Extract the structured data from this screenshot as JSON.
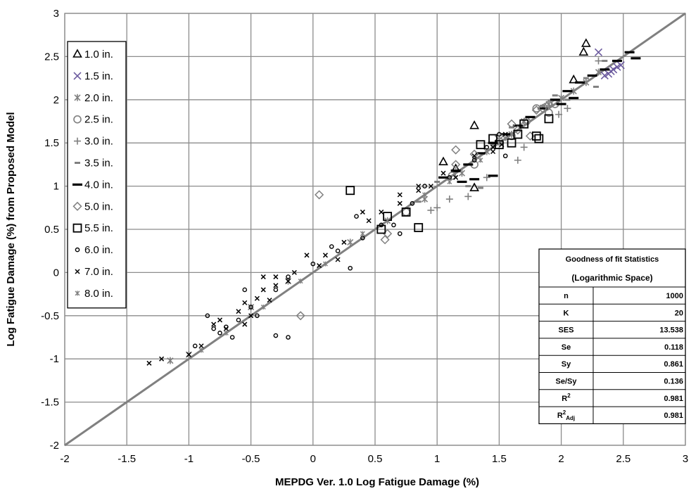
{
  "chart_data": {
    "type": "scatter",
    "xlabel": "MEPDG Ver. 1.0 Log Fatigue Damage (%)",
    "ylabel": "Log Fatigue Damage (%) from Proposed Model",
    "xlim": [
      -2,
      3
    ],
    "ylim": [
      -2,
      3
    ],
    "x_ticks": [
      "-2",
      "-1.5",
      "-1",
      "-0.5",
      "0",
      "0.5",
      "1",
      "1.5",
      "2",
      "2.5",
      "3"
    ],
    "y_ticks": [
      "-2",
      "-1.5",
      "-1",
      "-0.5",
      "0",
      "0.5",
      "1",
      "1.5",
      "2",
      "2.5",
      "3"
    ],
    "grid": true,
    "legend_position": "top-left",
    "equality_line": [
      [
        -2,
        -2
      ],
      [
        3,
        3
      ]
    ],
    "series": [
      {
        "name": "1.0 in.",
        "marker": "triangle",
        "color": "#000000",
        "points": [
          [
            2.2,
            2.65
          ],
          [
            2.18,
            2.55
          ],
          [
            2.1,
            2.23
          ],
          [
            1.3,
            1.7
          ],
          [
            1.05,
            1.28
          ],
          [
            1.15,
            1.2
          ],
          [
            1.3,
            0.98
          ]
        ]
      },
      {
        "name": "1.5 in.",
        "marker": "x",
        "color": "#6b5a9e",
        "points": [
          [
            2.3,
            2.55
          ],
          [
            2.42,
            2.35
          ],
          [
            2.45,
            2.38
          ],
          [
            2.38,
            2.3
          ],
          [
            2.35,
            2.28
          ],
          [
            2.48,
            2.4
          ],
          [
            2.4,
            2.33
          ]
        ]
      },
      {
        "name": "2.0 in.",
        "marker": "asterisk",
        "color": "#808080",
        "points": [
          [
            1.9,
            1.95
          ],
          [
            2.0,
            2.02
          ],
          [
            2.1,
            2.1
          ],
          [
            1.7,
            1.75
          ],
          [
            1.6,
            1.6
          ],
          [
            1.4,
            1.4
          ],
          [
            1.2,
            1.15
          ],
          [
            0.9,
            0.85
          ],
          [
            0.6,
            0.6
          ],
          [
            0.3,
            0.35
          ],
          [
            -0.2,
            -0.1
          ],
          [
            -0.5,
            -0.4
          ],
          [
            -1.15,
            -1.02
          ],
          [
            -1.0,
            -0.95
          ],
          [
            2.2,
            2.2
          ],
          [
            2.3,
            2.32
          ]
        ]
      },
      {
        "name": "2.5 in.",
        "marker": "circle",
        "color": "#808080",
        "points": [
          [
            1.72,
            1.75
          ],
          [
            1.8,
            1.9
          ],
          [
            1.88,
            1.92
          ],
          [
            1.9,
            1.85
          ],
          [
            1.95,
            1.95
          ],
          [
            1.6,
            1.58
          ],
          [
            1.5,
            1.52
          ],
          [
            1.3,
            1.25
          ],
          [
            1.12,
            1.12
          ],
          [
            0.75,
            0.7
          ]
        ]
      },
      {
        "name": "3.0 in.",
        "marker": "plus",
        "color": "#808080",
        "points": [
          [
            2.3,
            2.45
          ],
          [
            1.98,
            1.83
          ],
          [
            2.05,
            1.9
          ],
          [
            1.7,
            1.45
          ],
          [
            1.65,
            1.3
          ],
          [
            1.25,
            0.88
          ],
          [
            1.1,
            0.85
          ],
          [
            1.0,
            0.75
          ],
          [
            0.95,
            0.72
          ],
          [
            1.4,
            1.1
          ]
        ]
      },
      {
        "name": "3.5 in.",
        "marker": "dash",
        "color": "#808080",
        "points": [
          [
            2.35,
            2.45
          ],
          [
            2.2,
            2.25
          ],
          [
            1.95,
            2.05
          ],
          [
            1.85,
            1.93
          ],
          [
            1.6,
            1.68
          ],
          [
            1.45,
            1.48
          ],
          [
            1.25,
            1.0
          ],
          [
            1.35,
            0.98
          ],
          [
            0.85,
            0.82
          ],
          [
            1.0,
            1.05
          ],
          [
            2.28,
            2.15
          ],
          [
            2.05,
            2.0
          ]
        ]
      },
      {
        "name": "4.0 in.",
        "marker": "bar",
        "color": "#000000",
        "points": [
          [
            2.55,
            2.55
          ],
          [
            2.6,
            2.48
          ],
          [
            2.45,
            2.45
          ],
          [
            2.35,
            2.35
          ],
          [
            2.25,
            2.28
          ],
          [
            2.15,
            2.2
          ],
          [
            2.05,
            2.1
          ],
          [
            1.95,
            2.0
          ],
          [
            1.85,
            1.9
          ],
          [
            1.75,
            1.8
          ],
          [
            1.65,
            1.7
          ],
          [
            1.55,
            1.6
          ],
          [
            1.45,
            1.5
          ],
          [
            1.35,
            1.38
          ],
          [
            1.25,
            1.25
          ],
          [
            1.3,
            1.08
          ],
          [
            1.15,
            1.18
          ],
          [
            1.05,
            1.1
          ],
          [
            1.2,
            1.05
          ],
          [
            1.45,
            1.12
          ],
          [
            2.0,
            1.95
          ],
          [
            2.1,
            2.02
          ]
        ]
      },
      {
        "name": "5.0 in.",
        "marker": "diamond",
        "color": "#808080",
        "points": [
          [
            0.05,
            0.9
          ],
          [
            -0.1,
            -0.5
          ],
          [
            0.6,
            0.45
          ],
          [
            1.15,
            1.25
          ],
          [
            1.3,
            1.37
          ],
          [
            1.5,
            1.58
          ],
          [
            1.65,
            1.65
          ],
          [
            1.6,
            1.72
          ],
          [
            1.75,
            1.58
          ],
          [
            1.8,
            1.88
          ],
          [
            1.85,
            1.9
          ],
          [
            1.9,
            1.95
          ],
          [
            1.15,
            1.42
          ],
          [
            0.58,
            0.38
          ]
        ]
      },
      {
        "name": "5.5 in.",
        "marker": "square",
        "color": "#000000",
        "points": [
          [
            0.3,
            0.95
          ],
          [
            0.85,
            0.52
          ],
          [
            0.75,
            0.7
          ],
          [
            0.6,
            0.65
          ],
          [
            1.35,
            1.48
          ],
          [
            1.45,
            1.55
          ],
          [
            1.5,
            1.48
          ],
          [
            1.65,
            1.6
          ],
          [
            1.7,
            1.72
          ],
          [
            1.8,
            1.58
          ],
          [
            1.82,
            1.55
          ],
          [
            1.6,
            1.5
          ],
          [
            1.9,
            1.78
          ],
          [
            0.55,
            0.5
          ]
        ]
      },
      {
        "name": "6.0 in.",
        "marker": "circle-small",
        "color": "#000000",
        "points": [
          [
            -0.8,
            -0.65
          ],
          [
            -0.75,
            -0.7
          ],
          [
            -0.6,
            -0.55
          ],
          [
            -0.5,
            -0.4
          ],
          [
            -0.3,
            -0.2
          ],
          [
            -0.2,
            -0.05
          ],
          [
            0.0,
            0.1
          ],
          [
            0.2,
            0.25
          ],
          [
            0.4,
            0.4
          ],
          [
            0.55,
            0.55
          ],
          [
            0.65,
            0.55
          ],
          [
            0.7,
            0.45
          ],
          [
            0.8,
            0.8
          ],
          [
            1.3,
            1.3
          ],
          [
            1.5,
            1.6
          ],
          [
            1.55,
            1.35
          ],
          [
            -0.3,
            -0.73
          ],
          [
            -0.2,
            -0.75
          ],
          [
            -0.45,
            -0.5
          ],
          [
            -0.65,
            -0.75
          ],
          [
            -0.85,
            -0.5
          ],
          [
            -0.7,
            -0.63
          ],
          [
            -0.95,
            -0.85
          ],
          [
            -0.55,
            -0.2
          ],
          [
            0.15,
            0.3
          ],
          [
            0.3,
            0.05
          ],
          [
            0.9,
            1.0
          ],
          [
            1.1,
            1.1
          ],
          [
            1.4,
            1.45
          ],
          [
            0.35,
            0.65
          ]
        ]
      },
      {
        "name": "7.0 in.",
        "marker": "cross-small",
        "color": "#000000",
        "points": [
          [
            -1.32,
            -1.05
          ],
          [
            -1.22,
            -1.0
          ],
          [
            -1.0,
            -0.95
          ],
          [
            -0.9,
            -0.85
          ],
          [
            -0.8,
            -0.6
          ],
          [
            -0.7,
            -0.65
          ],
          [
            -0.55,
            -0.35
          ],
          [
            -0.45,
            -0.3
          ],
          [
            -0.4,
            -0.2
          ],
          [
            -0.3,
            -0.15
          ],
          [
            -0.2,
            -0.1
          ],
          [
            -0.15,
            0.0
          ],
          [
            0.1,
            0.2
          ],
          [
            0.25,
            0.35
          ],
          [
            0.45,
            0.6
          ],
          [
            0.55,
            0.7
          ],
          [
            0.7,
            0.8
          ],
          [
            0.85,
            0.95
          ],
          [
            0.95,
            1.0
          ],
          [
            1.05,
            1.15
          ],
          [
            1.15,
            1.1
          ],
          [
            1.3,
            1.35
          ],
          [
            1.45,
            1.45
          ],
          [
            1.52,
            1.48
          ],
          [
            1.45,
            1.4
          ],
          [
            1.55,
            1.6
          ],
          [
            -0.75,
            -0.55
          ],
          [
            -0.6,
            -0.45
          ],
          [
            -0.55,
            -0.6
          ],
          [
            -0.5,
            -0.5
          ],
          [
            -0.35,
            -0.32
          ],
          [
            0.2,
            0.15
          ],
          [
            -0.05,
            0.2
          ],
          [
            0.4,
            0.7
          ],
          [
            0.7,
            0.9
          ],
          [
            0.85,
            1.0
          ],
          [
            -0.4,
            -0.05
          ],
          [
            -0.3,
            -0.05
          ],
          [
            0.05,
            0.08
          ]
        ]
      },
      {
        "name": "8.0 in.",
        "marker": "asterisk-small",
        "color": "#808080",
        "points": [
          [
            -1.15,
            -1.02
          ],
          [
            -0.9,
            -0.9
          ],
          [
            -0.7,
            -0.7
          ],
          [
            -0.4,
            -0.4
          ],
          [
            -0.1,
            -0.1
          ],
          [
            0.1,
            0.1
          ],
          [
            0.4,
            0.45
          ],
          [
            0.6,
            0.6
          ],
          [
            0.9,
            0.9
          ],
          [
            1.1,
            1.05
          ],
          [
            1.35,
            1.3
          ],
          [
            1.55,
            1.55
          ]
        ]
      }
    ]
  },
  "stats_table": {
    "title_line1": "Goodness of fit Statistics",
    "title_line2": "(Logarithmic Space)",
    "rows": [
      {
        "label": "n",
        "value": "1000"
      },
      {
        "label": "K",
        "value": "20"
      },
      {
        "label": "SES",
        "value": "13.538"
      },
      {
        "label": "Se",
        "value": "0.118"
      },
      {
        "label": "Sy",
        "value": "0.861"
      },
      {
        "label": "Se/Sy",
        "value": "0.136"
      }
    ],
    "r2": {
      "label": "R",
      "sup": "2",
      "value": "0.981"
    },
    "r2adj": {
      "label": "R",
      "sup": "2",
      "sub": "Adj",
      "value": "0.981"
    }
  }
}
